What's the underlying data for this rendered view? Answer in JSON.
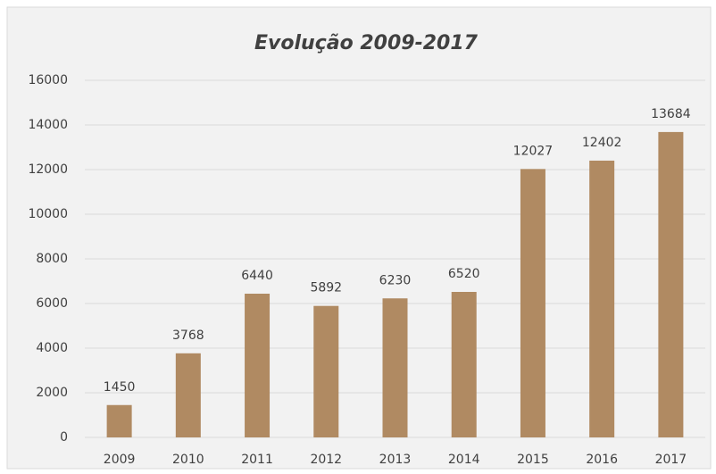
{
  "chart_data": {
    "type": "bar",
    "title": "Evolução 2009-2017",
    "categories": [
      "2009",
      "2010",
      "2011",
      "2012",
      "2013",
      "2014",
      "2015",
      "2016",
      "2017"
    ],
    "values": [
      1450,
      3768,
      6440,
      5892,
      6230,
      6520,
      12027,
      12402,
      13684
    ],
    "color": "#b08a62",
    "ylim": [
      0,
      16000
    ],
    "yticks": [
      0,
      2000,
      4000,
      6000,
      8000,
      10000,
      12000,
      14000,
      16000
    ],
    "grid": true
  }
}
